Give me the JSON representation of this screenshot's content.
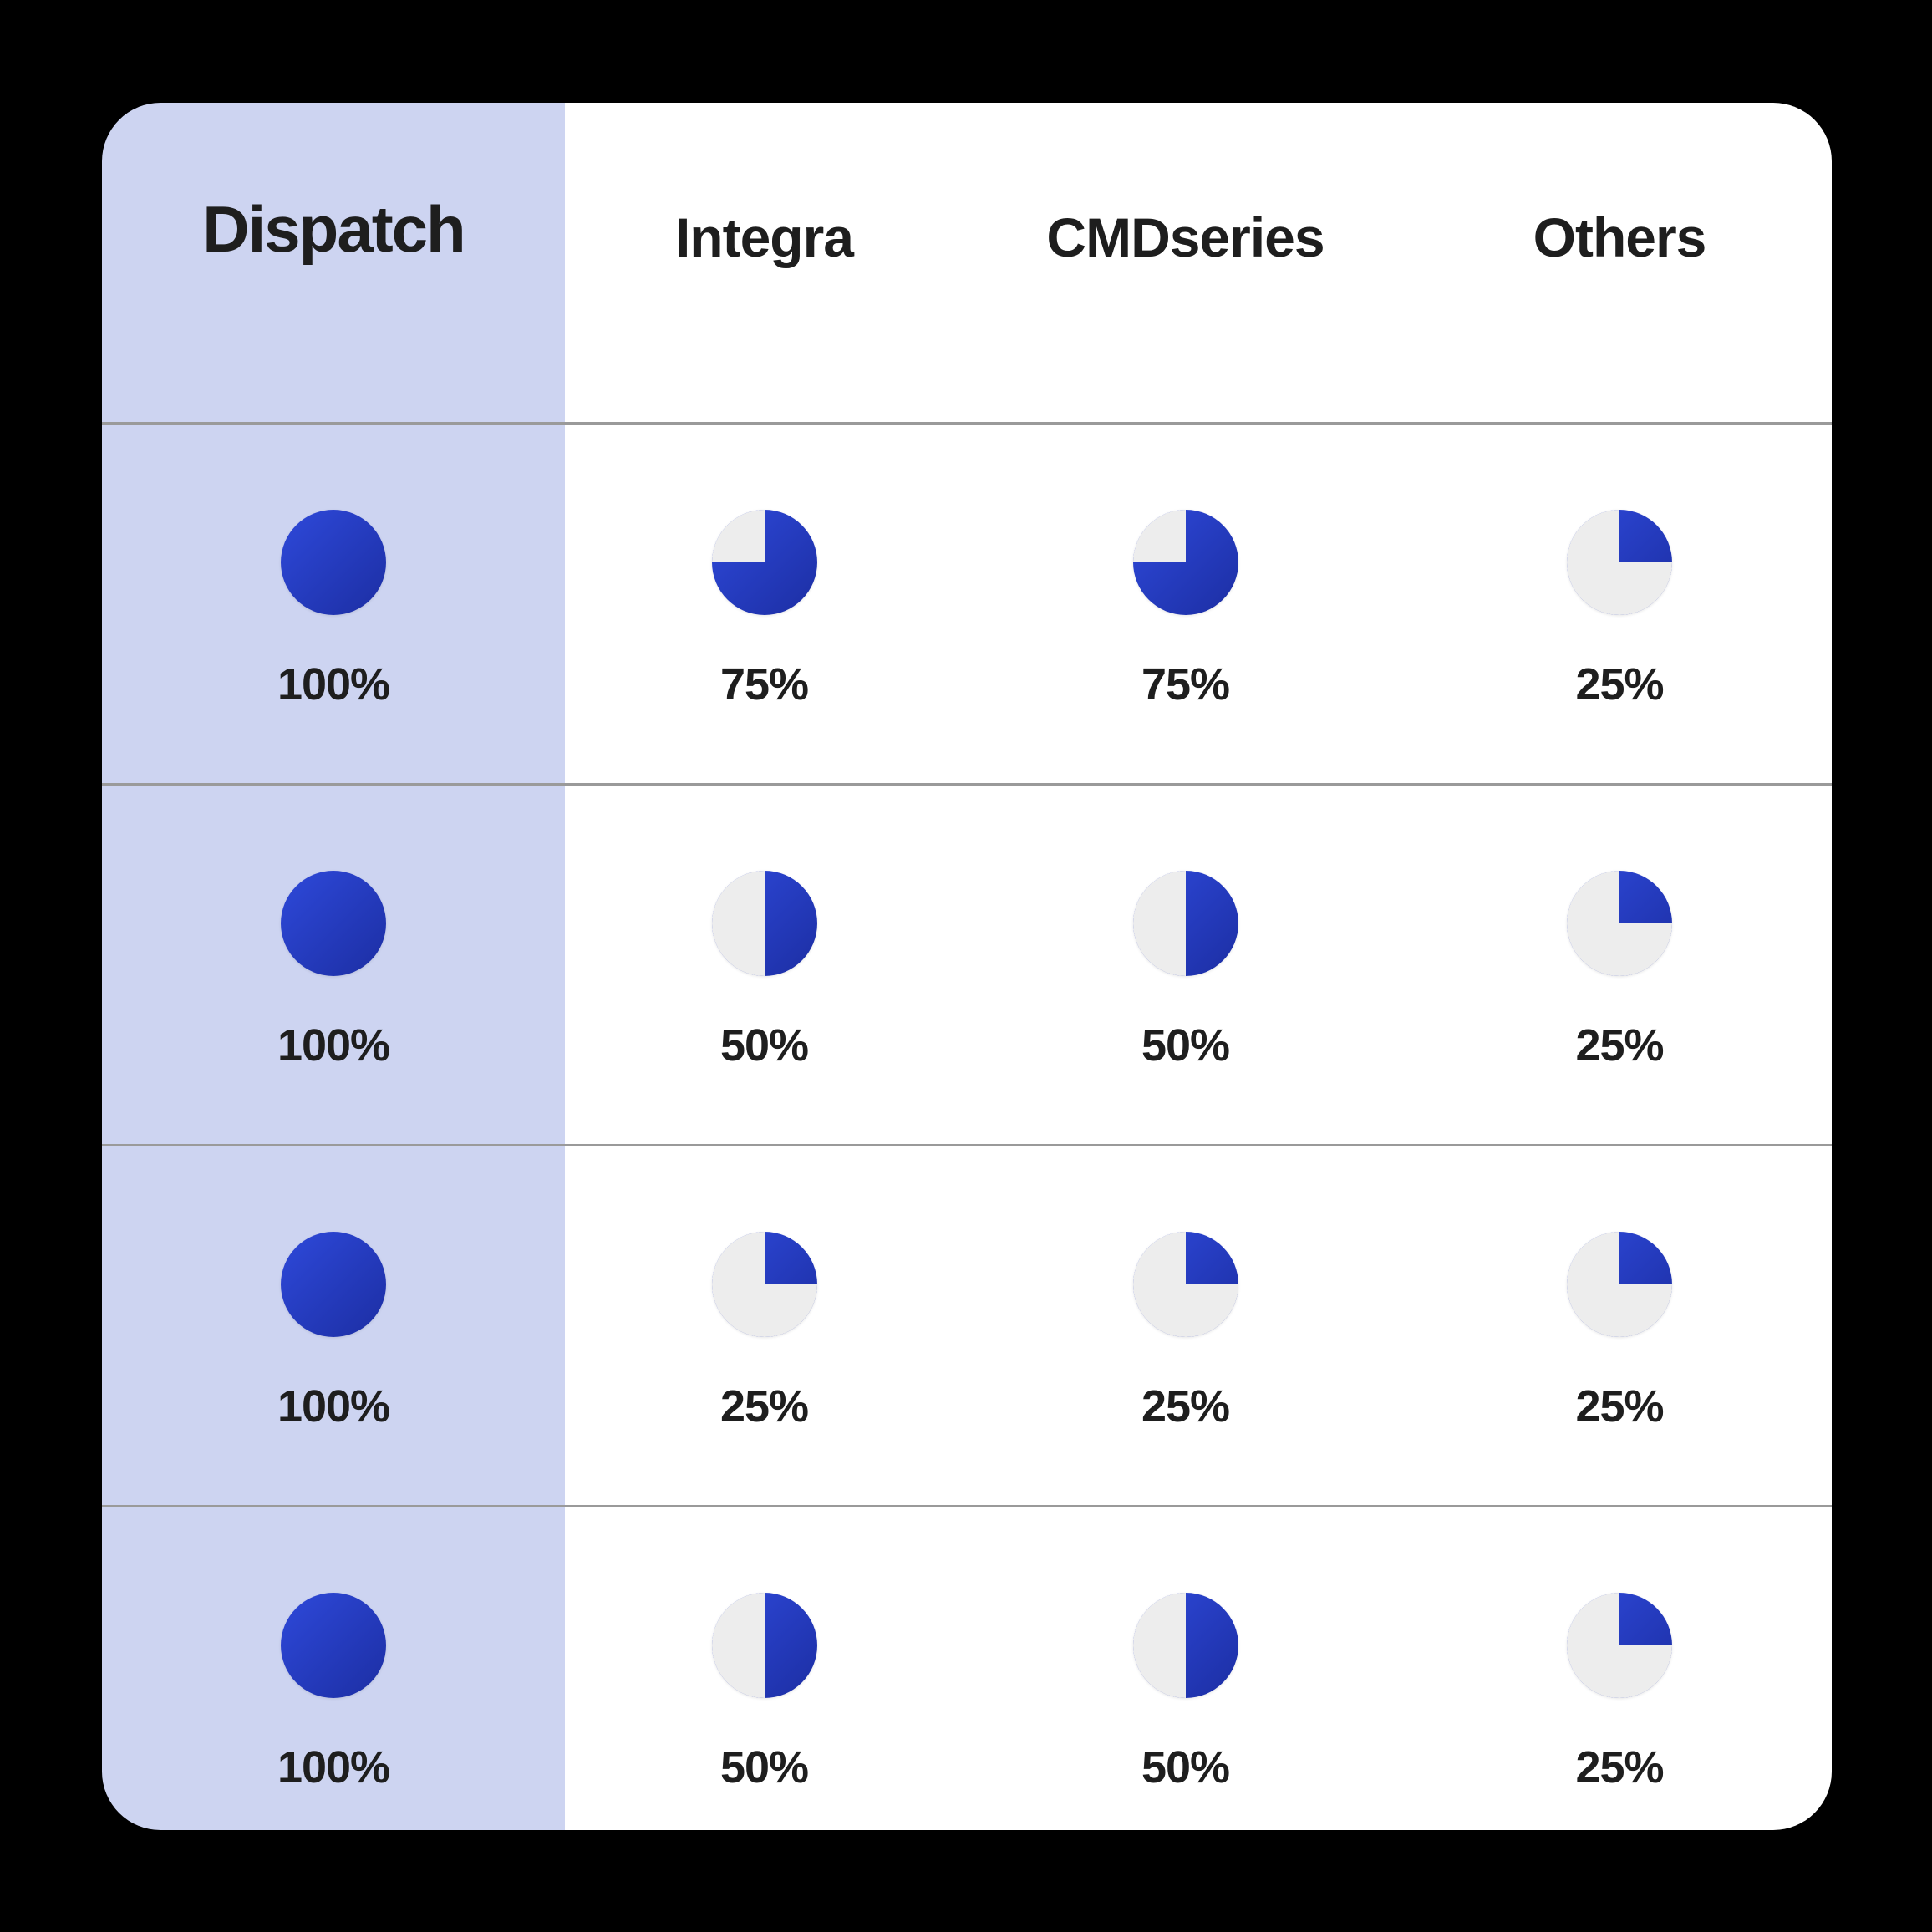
{
  "colors": {
    "page-bg": "#000000",
    "card-bg": "#ffffff",
    "lavender": "#cdd4f1",
    "separator": "#9a9a9a",
    "text": "#1e1e1e",
    "blue-light": "#2e49da",
    "blue-dark": "#1c2ea3",
    "gray-slice": "#ededed"
  },
  "header": {
    "columns": [
      "Dispatch",
      "Integra",
      "CMDseries",
      "Others"
    ]
  },
  "rows": [
    {
      "cells": [
        {
          "pct": 100,
          "label": "100%"
        },
        {
          "pct": 75,
          "label": "75%"
        },
        {
          "pct": 75,
          "label": "75%"
        },
        {
          "pct": 25,
          "label": "25%"
        }
      ]
    },
    {
      "cells": [
        {
          "pct": 100,
          "label": "100%"
        },
        {
          "pct": 50,
          "label": "50%"
        },
        {
          "pct": 50,
          "label": "50%"
        },
        {
          "pct": 25,
          "label": "25%"
        }
      ]
    },
    {
      "cells": [
        {
          "pct": 100,
          "label": "100%"
        },
        {
          "pct": 25,
          "label": "25%"
        },
        {
          "pct": 25,
          "label": "25%"
        },
        {
          "pct": 25,
          "label": "25%"
        }
      ]
    },
    {
      "cells": [
        {
          "pct": 100,
          "label": "100%"
        },
        {
          "pct": 50,
          "label": "50%"
        },
        {
          "pct": 50,
          "label": "50%"
        },
        {
          "pct": 25,
          "label": "25%"
        }
      ]
    }
  ],
  "chart_data": {
    "type": "table",
    "columns": [
      "Dispatch",
      "Integra",
      "CMDseries",
      "Others"
    ],
    "rows_percent": [
      [
        100,
        75,
        75,
        25
      ],
      [
        100,
        50,
        50,
        25
      ],
      [
        100,
        25,
        25,
        25
      ],
      [
        100,
        50,
        50,
        25
      ]
    ],
    "unit": "%",
    "cell_glyph": "pie filled clockwise from 12 o'clock",
    "highlighted_column": "Dispatch"
  }
}
